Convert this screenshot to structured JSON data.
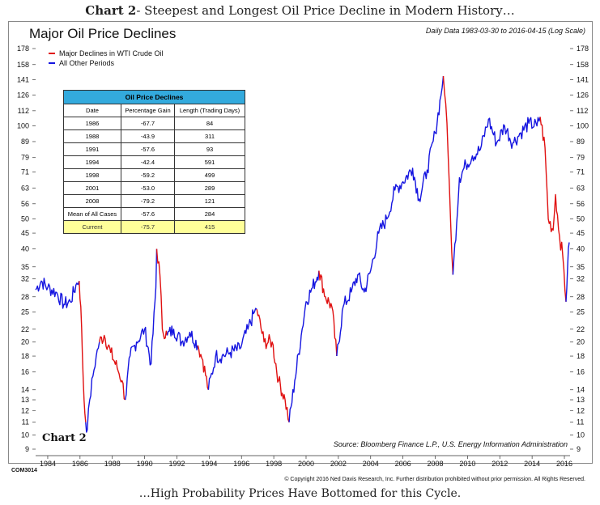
{
  "heading": {
    "bold": "Chart 2",
    "rest": "- Steepest and Longest Oil Price Decline in Modern History…"
  },
  "footer_caption": "…High Probability Prices Have Bottomed for this Cycle.",
  "chart_label": "Chart 2",
  "code": "COM3014",
  "copyright": "© Copyright 2016 Ned Davis Research, Inc. Further distribution prohibited without prior permission. All Rights Reserved.",
  "source": "Source:  Bloomberg Finance L.P., U.S. Energy Information Administration",
  "colors": {
    "decline": "#e01010",
    "other": "#1515e0",
    "table_header": "#33aadd",
    "current_row": "#ffff99"
  },
  "chart_data": {
    "type": "line",
    "title": "Major Oil Price Declines",
    "subtitle": "Daily Data 1983-03-30 to 2016-04-15 (Log Scale)",
    "scale": "log",
    "ylim": [
      9,
      178
    ],
    "y_ticks": [
      9,
      10,
      11,
      12,
      13,
      14,
      16,
      18,
      20,
      22,
      25,
      28,
      32,
      35,
      40,
      45,
      50,
      56,
      63,
      71,
      79,
      89,
      100,
      112,
      126,
      141,
      158,
      178
    ],
    "xlim": [
      1983.25,
      2016.35
    ],
    "x_ticks": [
      1984,
      1986,
      1988,
      1990,
      1992,
      1994,
      1996,
      1998,
      2000,
      2002,
      2004,
      2006,
      2008,
      2010,
      2012,
      2014,
      2016
    ],
    "legend": [
      {
        "label": "Major Declines in WTI Crude Oil",
        "color": "#e01010"
      },
      {
        "label": "All Other Periods",
        "color": "#1515e0"
      }
    ],
    "series": [
      {
        "name": "All Other Periods",
        "color": "#1515e0",
        "x": [
          1983.25,
          1983.6,
          1984.0,
          1984.5,
          1985.0,
          1985.4,
          1985.8,
          1985.95
        ],
        "y": [
          29.5,
          31.5,
          30,
          29,
          26.5,
          27,
          31,
          31.5
        ]
      },
      {
        "name": "Major Declines in WTI Crude Oil",
        "color": "#e01010",
        "x": [
          1985.95,
          1986.05,
          1986.15,
          1986.25,
          1986.35
        ],
        "y": [
          31.5,
          26,
          18,
          13,
          11
        ]
      },
      {
        "name": "All Other Periods",
        "color": "#1515e0",
        "x": [
          1986.35,
          1986.45,
          1986.6,
          1986.8,
          1987.0,
          1987.2
        ],
        "y": [
          11,
          10.4,
          13,
          15.5,
          18,
          20
        ]
      },
      {
        "name": "Major Declines in WTI Crude Oil",
        "color": "#e01010",
        "x": [
          1987.2,
          1987.5,
          1987.9,
          1988.3,
          1988.6,
          1988.8
        ],
        "y": [
          20,
          21,
          18.5,
          16.5,
          15,
          13
        ]
      },
      {
        "name": "All Other Periods",
        "color": "#1515e0",
        "x": [
          1988.8,
          1989.1,
          1989.5,
          1990.0,
          1990.4,
          1990.7,
          1990.75
        ],
        "y": [
          13,
          18,
          20,
          22,
          17,
          30,
          40
        ]
      },
      {
        "name": "Major Declines in WTI Crude Oil",
        "color": "#e01010",
        "x": [
          1990.75,
          1990.95,
          1991.1,
          1991.4
        ],
        "y": [
          40,
          33,
          22,
          21
        ]
      },
      {
        "name": "All Other Periods",
        "color": "#1515e0",
        "x": [
          1991.4,
          1991.8,
          1992.3,
          1992.8,
          1993.3
        ],
        "y": [
          21,
          22,
          20,
          21.5,
          19.5
        ]
      },
      {
        "name": "Major Declines in WTI Crude Oil",
        "color": "#e01010",
        "x": [
          1993.3,
          1993.6,
          1993.95
        ],
        "y": [
          19.5,
          17.5,
          14
        ]
      },
      {
        "name": "All Other Periods",
        "color": "#1515e0",
        "x": [
          1993.95,
          1994.4,
          1994.8,
          1995.3,
          1995.9,
          1996.4,
          1996.8,
          1996.95
        ],
        "y": [
          14,
          18,
          18,
          18.5,
          19,
          22,
          25,
          25.5
        ]
      },
      {
        "name": "Major Declines in WTI Crude Oil",
        "color": "#e01010",
        "x": [
          1996.95,
          1997.4,
          1997.9,
          1998.3,
          1998.7,
          1998.95
        ],
        "y": [
          25.5,
          20,
          20,
          15,
          13,
          11
        ]
      },
      {
        "name": "All Other Periods",
        "color": "#1515e0",
        "x": [
          1998.95,
          1999.3,
          1999.7,
          2000.0,
          2000.4,
          2000.8
        ],
        "y": [
          11,
          15,
          21,
          27,
          30,
          34
        ]
      },
      {
        "name": "Major Declines in WTI Crude Oil",
        "color": "#e01010",
        "x": [
          2000.8,
          2001.2,
          2001.6,
          2001.9
        ],
        "y": [
          34,
          28,
          26,
          18
        ]
      },
      {
        "name": "All Other Periods",
        "color": "#1515e0",
        "x": [
          2001.9,
          2002.3,
          2002.8,
          2003.2,
          2003.6,
          2004.0,
          2004.5,
          2005.0,
          2005.5,
          2006.0,
          2006.6,
          2007.0,
          2007.5,
          2008.0,
          2008.35,
          2008.5
        ],
        "y": [
          18,
          26,
          29,
          33,
          29,
          34,
          45,
          50,
          62,
          66,
          73,
          58,
          72,
          95,
          125,
          145
        ]
      },
      {
        "name": "Major Declines in WTI Crude Oil",
        "color": "#e01010",
        "x": [
          2008.5,
          2008.65,
          2008.8,
          2008.95,
          2009.1
        ],
        "y": [
          145,
          118,
          80,
          50,
          33
        ]
      },
      {
        "name": "All Other Periods",
        "color": "#1515e0",
        "x": [
          2009.1,
          2009.5,
          2009.9,
          2010.3,
          2010.8,
          2011.3,
          2011.8,
          2012.3,
          2012.8,
          2013.3,
          2013.8,
          2014.3,
          2014.5
        ],
        "y": [
          33,
          68,
          75,
          80,
          84,
          105,
          88,
          100,
          88,
          95,
          102,
          100,
          107
        ]
      },
      {
        "name": "Major Declines in WTI Crude Oil",
        "color": "#e01010",
        "x": [
          2014.5,
          2014.8,
          2015.0,
          2015.3,
          2015.45,
          2015.7,
          2015.9,
          2016.1
        ],
        "y": [
          107,
          85,
          50,
          46,
          60,
          44,
          38,
          27
        ]
      },
      {
        "name": "All Other Periods",
        "color": "#1515e0",
        "x": [
          2016.1,
          2016.2,
          2016.3
        ],
        "y": [
          27,
          35,
          42
        ]
      }
    ],
    "table": {
      "title": "Oil Price Declines",
      "columns": [
        "Date",
        "Percentage Gain",
        "Length (Trading Days)"
      ],
      "rows": [
        [
          "1986",
          "-67.7",
          "84"
        ],
        [
          "1988",
          "-43.9",
          "311"
        ],
        [
          "1991",
          "-57.6",
          "93"
        ],
        [
          "1994",
          "-42.4",
          "591"
        ],
        [
          "1998",
          "-59.2",
          "499"
        ],
        [
          "2001",
          "-53.0",
          "289"
        ],
        [
          "2008",
          "-79.2",
          "121"
        ],
        [
          "Mean of All Cases",
          "-57.6",
          "284"
        ]
      ],
      "current": [
        "Current",
        "-75.7",
        "415"
      ]
    }
  }
}
